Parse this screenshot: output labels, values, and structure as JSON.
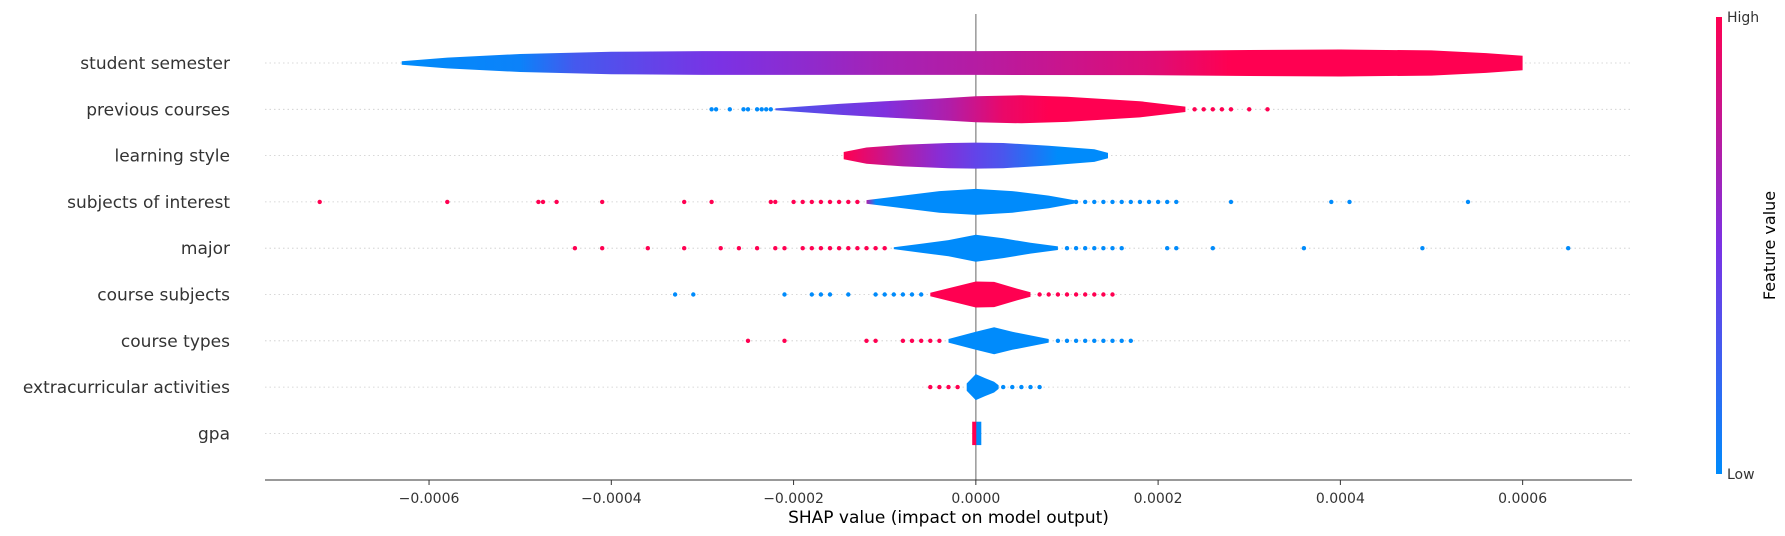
{
  "chart_data": {
    "type": "violin",
    "xlabel": "SHAP value (impact on model output)",
    "xlim": [
      -0.00078,
      0.00072
    ],
    "xticks": [
      -0.0006,
      -0.0004,
      -0.0002,
      0.0,
      0.0002,
      0.0004,
      0.0006
    ],
    "xtick_labels": [
      "−0.0006",
      "−0.0004",
      "−0.0002",
      "0.0000",
      "0.0002",
      "0.0004",
      "0.0006"
    ],
    "colorbar": {
      "title": "Feature value",
      "high_label": "High",
      "low_label": "Low",
      "low_color": "#008bfb",
      "high_color": "#ff0051"
    },
    "features": [
      {
        "name": "student semester",
        "density": [
          [
            -0.00063,
            0.1
          ],
          [
            -0.00058,
            0.3
          ],
          [
            -0.0005,
            0.5
          ],
          [
            -0.0004,
            0.62
          ],
          [
            -0.0003,
            0.66
          ],
          [
            -0.0002,
            0.66
          ],
          [
            0.0,
            0.66
          ],
          [
            0.0002,
            0.68
          ],
          [
            0.0003,
            0.72
          ],
          [
            0.0004,
            0.75
          ],
          [
            0.0005,
            0.7
          ],
          [
            0.00056,
            0.55
          ],
          [
            0.0006,
            0.4
          ]
        ],
        "color_stops": [
          [
            -0.00063,
            0.0
          ],
          [
            -0.0005,
            0.05
          ],
          [
            -0.00044,
            0.28
          ],
          [
            -0.00036,
            0.4
          ],
          [
            -0.00028,
            0.5
          ],
          [
            -0.00018,
            0.58
          ],
          [
            -0.0001,
            0.66
          ],
          [
            0.0,
            0.72
          ],
          [
            0.0001,
            0.8
          ],
          [
            0.0002,
            0.88
          ],
          [
            0.00028,
            1.0
          ],
          [
            0.0006,
            1.0
          ]
        ],
        "outliers": []
      },
      {
        "name": "previous courses",
        "density": [
          [
            -0.00022,
            0.05
          ],
          [
            -0.00015,
            0.3
          ],
          [
            -0.0001,
            0.45
          ],
          [
            -4e-05,
            0.6
          ],
          [
            0.0,
            0.72
          ],
          [
            5e-05,
            0.78
          ],
          [
            0.0001,
            0.7
          ],
          [
            0.00018,
            0.45
          ],
          [
            0.00023,
            0.15
          ]
        ],
        "color_stops": [
          [
            -0.00022,
            0.3
          ],
          [
            -0.0001,
            0.52
          ],
          [
            -3e-05,
            0.7
          ],
          [
            3e-05,
            0.92
          ],
          [
            8e-05,
            1.0
          ],
          [
            0.00023,
            1.0
          ]
        ],
        "outliers": [
          [
            -0.00029,
            0.0
          ],
          [
            -0.000285,
            0.0
          ],
          [
            -0.00027,
            0.0
          ],
          [
            -0.000255,
            0.0
          ],
          [
            -0.00025,
            0.0
          ],
          [
            -0.00024,
            0.0
          ],
          [
            -0.000235,
            0.0
          ],
          [
            -0.00023,
            0.0
          ],
          [
            -0.000225,
            0.0
          ],
          [
            0.00024,
            1.0
          ],
          [
            0.00025,
            1.0
          ],
          [
            0.00026,
            1.0
          ],
          [
            0.00027,
            1.0
          ],
          [
            0.00028,
            1.0
          ],
          [
            0.0003,
            1.0
          ],
          [
            0.00032,
            1.0
          ]
        ]
      },
      {
        "name": "learning style",
        "density": [
          [
            -0.000145,
            0.2
          ],
          [
            -0.00012,
            0.45
          ],
          [
            -8e-05,
            0.6
          ],
          [
            -3e-05,
            0.7
          ],
          [
            0.0,
            0.72
          ],
          [
            3e-05,
            0.7
          ],
          [
            8e-05,
            0.55
          ],
          [
            0.00013,
            0.35
          ],
          [
            0.000145,
            0.15
          ]
        ],
        "color_stops": [
          [
            -0.000145,
            1.0
          ],
          [
            -0.00011,
            0.85
          ],
          [
            -8e-05,
            0.7
          ],
          [
            -4e-05,
            0.55
          ],
          [
            0.0,
            0.4
          ],
          [
            3e-05,
            0.3
          ],
          [
            6e-05,
            0.15
          ],
          [
            9e-05,
            0.0
          ],
          [
            0.000145,
            0.0
          ]
        ],
        "outliers": []
      },
      {
        "name": "subjects of interest",
        "density": [
          [
            -0.00012,
            0.1
          ],
          [
            -8e-05,
            0.35
          ],
          [
            -4e-05,
            0.6
          ],
          [
            0.0,
            0.72
          ],
          [
            4e-05,
            0.6
          ],
          [
            8e-05,
            0.35
          ],
          [
            0.00011,
            0.08
          ]
        ],
        "color_stops": [
          [
            -0.00012,
            0.7
          ],
          [
            -0.00011,
            0.0
          ],
          [
            0.00011,
            0.0
          ]
        ],
        "outliers": [
          [
            -0.00072,
            1.0
          ],
          [
            -0.00058,
            1.0
          ],
          [
            -0.00048,
            1.0
          ],
          [
            -0.000475,
            1.0
          ],
          [
            -0.00046,
            1.0
          ],
          [
            -0.00041,
            1.0
          ],
          [
            -0.00032,
            1.0
          ],
          [
            -0.00029,
            1.0
          ],
          [
            -0.000225,
            1.0
          ],
          [
            -0.00022,
            1.0
          ],
          [
            -0.0002,
            1.0
          ],
          [
            -0.00019,
            1.0
          ],
          [
            -0.00018,
            1.0
          ],
          [
            -0.00017,
            1.0
          ],
          [
            -0.00016,
            1.0
          ],
          [
            -0.00015,
            1.0
          ],
          [
            -0.00014,
            1.0
          ],
          [
            -0.00013,
            1.0
          ],
          [
            0.00011,
            0.0
          ],
          [
            0.00012,
            0.0
          ],
          [
            0.00013,
            0.0
          ],
          [
            0.00014,
            0.0
          ],
          [
            0.00015,
            0.0
          ],
          [
            0.00016,
            0.0
          ],
          [
            0.00017,
            0.0
          ],
          [
            0.00018,
            0.0
          ],
          [
            0.00019,
            0.0
          ],
          [
            0.0002,
            0.0
          ],
          [
            0.00021,
            0.0
          ],
          [
            0.00022,
            0.0
          ],
          [
            0.00028,
            0.0
          ],
          [
            0.00039,
            0.0
          ],
          [
            0.00041,
            0.0
          ],
          [
            0.00054,
            0.0
          ]
        ]
      },
      {
        "name": "major",
        "density": [
          [
            -9e-05,
            0.05
          ],
          [
            -6e-05,
            0.25
          ],
          [
            -3e-05,
            0.45
          ],
          [
            0.0,
            0.75
          ],
          [
            3e-05,
            0.55
          ],
          [
            6e-05,
            0.3
          ],
          [
            9e-05,
            0.1
          ]
        ],
        "color_stops": [
          [
            -9e-05,
            0.0
          ],
          [
            9e-05,
            0.0
          ]
        ],
        "outliers": [
          [
            -0.00044,
            1.0
          ],
          [
            -0.00041,
            1.0
          ],
          [
            -0.00036,
            1.0
          ],
          [
            -0.00032,
            1.0
          ],
          [
            -0.00028,
            1.0
          ],
          [
            -0.00026,
            1.0
          ],
          [
            -0.00024,
            1.0
          ],
          [
            -0.00022,
            1.0
          ],
          [
            -0.00021,
            1.0
          ],
          [
            -0.00019,
            1.0
          ],
          [
            -0.00018,
            1.0
          ],
          [
            -0.00017,
            1.0
          ],
          [
            -0.00016,
            1.0
          ],
          [
            -0.00015,
            1.0
          ],
          [
            -0.00014,
            1.0
          ],
          [
            -0.00013,
            1.0
          ],
          [
            -0.00012,
            1.0
          ],
          [
            -0.00011,
            1.0
          ],
          [
            -0.0001,
            1.0
          ],
          [
            0.0001,
            0.0
          ],
          [
            0.00011,
            0.0
          ],
          [
            0.00012,
            0.0
          ],
          [
            0.00013,
            0.0
          ],
          [
            0.00014,
            0.0
          ],
          [
            0.00015,
            0.0
          ],
          [
            0.00016,
            0.0
          ],
          [
            0.00021,
            0.0
          ],
          [
            0.00022,
            0.0
          ],
          [
            0.00026,
            0.0
          ],
          [
            0.00036,
            0.0
          ],
          [
            0.00049,
            0.0
          ],
          [
            0.00065,
            0.0
          ]
        ]
      },
      {
        "name": "course subjects",
        "density": [
          [
            -5e-05,
            0.1
          ],
          [
            -3e-05,
            0.35
          ],
          [
            0.0,
            0.72
          ],
          [
            2e-05,
            0.7
          ],
          [
            4e-05,
            0.4
          ],
          [
            6e-05,
            0.12
          ]
        ],
        "color_stops": [
          [
            -5e-05,
            1.0
          ],
          [
            6e-05,
            1.0
          ]
        ],
        "outliers": [
          [
            -0.00033,
            0.0
          ],
          [
            -0.00031,
            0.0
          ],
          [
            -0.00021,
            0.0
          ],
          [
            -0.00018,
            0.0
          ],
          [
            -0.00017,
            0.0
          ],
          [
            -0.00016,
            0.0
          ],
          [
            -0.00014,
            0.0
          ],
          [
            -0.00011,
            0.0
          ],
          [
            -0.0001,
            0.0
          ],
          [
            -9e-05,
            0.0
          ],
          [
            -8e-05,
            0.0
          ],
          [
            -7e-05,
            0.0
          ],
          [
            -6e-05,
            0.0
          ],
          [
            7e-05,
            1.0
          ],
          [
            8e-05,
            1.0
          ],
          [
            9e-05,
            1.0
          ],
          [
            0.0001,
            1.0
          ],
          [
            0.00011,
            1.0
          ],
          [
            0.00012,
            1.0
          ],
          [
            0.00013,
            1.0
          ],
          [
            0.00014,
            1.0
          ],
          [
            0.00015,
            1.0
          ]
        ]
      },
      {
        "name": "course types",
        "density": [
          [
            -3e-05,
            0.1
          ],
          [
            0.0,
            0.5
          ],
          [
            2e-05,
            0.75
          ],
          [
            4e-05,
            0.5
          ],
          [
            6e-05,
            0.3
          ],
          [
            8e-05,
            0.1
          ]
        ],
        "color_stops": [
          [
            -3e-05,
            0.0
          ],
          [
            8e-05,
            0.0
          ]
        ],
        "outliers": [
          [
            -0.00025,
            1.0
          ],
          [
            -0.00021,
            1.0
          ],
          [
            -0.00012,
            1.0
          ],
          [
            -0.00011,
            1.0
          ],
          [
            -8e-05,
            1.0
          ],
          [
            -7e-05,
            1.0
          ],
          [
            -6e-05,
            1.0
          ],
          [
            -5e-05,
            1.0
          ],
          [
            -4e-05,
            1.0
          ],
          [
            9e-05,
            0.0
          ],
          [
            0.0001,
            0.0
          ],
          [
            0.00011,
            0.0
          ],
          [
            0.00012,
            0.0
          ],
          [
            0.00013,
            0.0
          ],
          [
            0.00014,
            0.0
          ],
          [
            0.00015,
            0.0
          ],
          [
            0.00016,
            0.0
          ],
          [
            0.00017,
            0.0
          ]
        ]
      },
      {
        "name": "extracurricular activities",
        "density": [
          [
            -1e-05,
            0.2
          ],
          [
            0.0,
            0.72
          ],
          [
            1e-05,
            0.5
          ],
          [
            2e-05,
            0.3
          ],
          [
            2.5e-05,
            0.1
          ]
        ],
        "color_stops": [
          [
            -1e-05,
            0.0
          ],
          [
            2.5e-05,
            0.0
          ]
        ],
        "outliers": [
          [
            -5e-05,
            1.0
          ],
          [
            -4e-05,
            1.0
          ],
          [
            -3e-05,
            1.0
          ],
          [
            -2e-05,
            1.0
          ],
          [
            3e-05,
            0.0
          ],
          [
            4e-05,
            0.0
          ],
          [
            5e-05,
            0.0
          ],
          [
            6e-05,
            0.0
          ],
          [
            7e-05,
            0.0
          ]
        ]
      },
      {
        "name": "gpa",
        "density": [
          [
            -4e-06,
            0.65
          ],
          [
            6e-06,
            0.65
          ]
        ],
        "color_stops": [
          [
            -4e-06,
            1.0
          ],
          [
            0.0,
            1.0
          ],
          [
            1e-06,
            0.0
          ],
          [
            6e-06,
            0.0
          ]
        ],
        "outliers": []
      }
    ]
  }
}
